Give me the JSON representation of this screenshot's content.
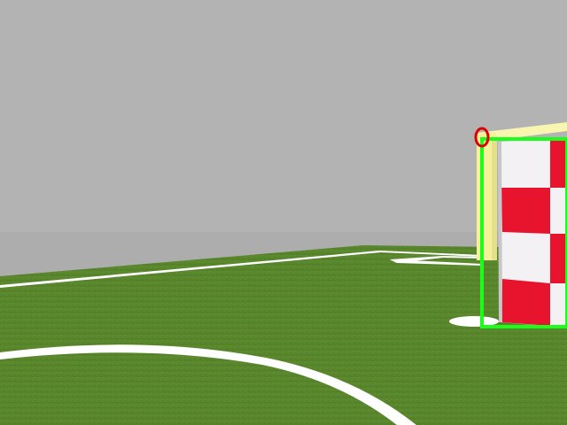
{
  "scene": {
    "view": "robot-soccer-camera",
    "colors": {
      "sky": "#b3b3b3",
      "horizon_band": "#aeaeae",
      "grass": "#5e8a2c",
      "grass_dark": "#4f7a24",
      "field_line": "#ffffff",
      "goal_post": "#f6f3a3",
      "flag_red": "#e8142e",
      "flag_white": "#f3f1f4",
      "detection_box": "#19ff19",
      "detection_marker": "#e00000"
    },
    "objects": [
      {
        "name": "goal-post",
        "kind": "field-object"
      },
      {
        "name": "checkered-flag",
        "kind": "field-object"
      },
      {
        "name": "center-circle-line",
        "kind": "field-marking"
      },
      {
        "name": "touch-line",
        "kind": "field-marking"
      },
      {
        "name": "penalty-spot",
        "kind": "field-marking"
      }
    ],
    "overlays": [
      {
        "name": "goal-detection-box",
        "color_ref": "detection_box"
      },
      {
        "name": "post-top-marker",
        "color_ref": "detection_marker"
      }
    ]
  }
}
